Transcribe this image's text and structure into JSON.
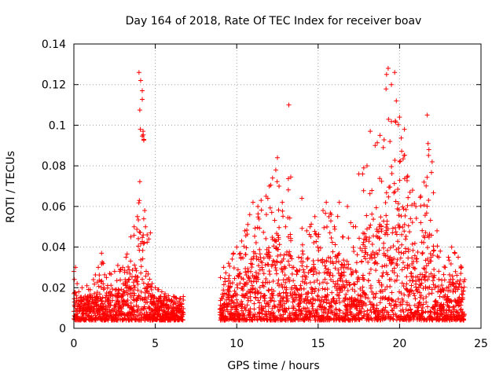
{
  "chart_data": {
    "type": "scatter",
    "title": "Day 164 of 2018, Rate Of TEC Index for receiver boav",
    "xlabel": "GPS time / hours",
    "ylabel": "ROTI / TECUs",
    "xlim": [
      0,
      25
    ],
    "ylim": [
      0,
      0.14
    ],
    "xticks": [
      0,
      5,
      10,
      15,
      20,
      25
    ],
    "xtick_labels": [
      "0",
      "5",
      "10",
      "15",
      "20",
      "25"
    ],
    "yticks": [
      0,
      0.02,
      0.04,
      0.06,
      0.08,
      0.1,
      0.12,
      0.14
    ],
    "ytick_labels": [
      "0",
      "0.02",
      "0.04",
      "0.06",
      "0.08",
      "0.1",
      "0.12",
      "0.14"
    ],
    "grid": true,
    "marker": "+",
    "color": "#ff0000",
    "series": [
      {
        "name": "ROTI",
        "description": "dense cloud of ROTI samples; envelope digitized",
        "x": [
          0.0,
          0.1,
          0.2,
          0.3,
          0.4,
          0.5,
          0.6,
          0.8,
          1.0,
          1.2,
          1.5,
          1.7,
          1.8,
          2.0,
          2.2,
          2.5,
          2.7,
          3.0,
          3.2,
          3.5,
          3.7,
          3.9,
          4.0,
          4.1,
          4.2,
          4.25,
          4.3,
          4.35,
          4.4,
          4.5,
          4.6,
          4.7,
          4.8,
          5.0,
          5.2,
          5.4,
          5.6,
          5.8,
          6.0,
          6.2,
          6.4,
          6.6,
          9.0,
          9.2,
          9.5,
          9.8,
          10.0,
          10.3,
          10.5,
          10.8,
          11.0,
          11.3,
          11.5,
          11.8,
          12.0,
          12.2,
          12.4,
          12.5,
          12.6,
          12.8,
          13.0,
          13.2,
          13.5,
          13.8,
          14.0,
          14.3,
          14.5,
          14.8,
          15.0,
          15.3,
          15.5,
          15.8,
          16.0,
          16.3,
          16.5,
          16.8,
          17.0,
          17.3,
          17.5,
          17.8,
          18.0,
          18.2,
          18.5,
          18.8,
          19.0,
          19.2,
          19.3,
          19.5,
          19.7,
          19.8,
          20.0,
          20.3,
          20.5,
          20.8,
          21.0,
          21.3,
          21.5,
          21.7,
          21.8,
          22.0,
          22.3,
          22.5,
          22.8,
          23.0,
          23.2,
          23.4,
          23.6,
          23.8,
          24.0
        ],
        "y": [
          0.028,
          0.03,
          0.022,
          0.018,
          0.012,
          0.02,
          0.015,
          0.021,
          0.019,
          0.024,
          0.03,
          0.037,
          0.032,
          0.025,
          0.027,
          0.028,
          0.031,
          0.03,
          0.035,
          0.045,
          0.05,
          0.055,
          0.126,
          0.122,
          0.117,
          0.097,
          0.093,
          0.058,
          0.05,
          0.046,
          0.044,
          0.047,
          0.022,
          0.02,
          0.019,
          0.018,
          0.017,
          0.016,
          0.014,
          0.013,
          0.011,
          0.008,
          0.025,
          0.03,
          0.032,
          0.037,
          0.04,
          0.043,
          0.048,
          0.056,
          0.062,
          0.06,
          0.063,
          0.065,
          0.07,
          0.074,
          0.078,
          0.084,
          0.07,
          0.062,
          0.05,
          0.11,
          0.03,
          0.035,
          0.064,
          0.048,
          0.05,
          0.055,
          0.045,
          0.058,
          0.062,
          0.056,
          0.05,
          0.062,
          0.045,
          0.06,
          0.052,
          0.05,
          0.076,
          0.079,
          0.08,
          0.097,
          0.09,
          0.095,
          0.089,
          0.125,
          0.128,
          0.12,
          0.126,
          0.112,
          0.104,
          0.098,
          0.075,
          0.068,
          0.06,
          0.065,
          0.072,
          0.105,
          0.088,
          0.082,
          0.048,
          0.038,
          0.03,
          0.035,
          0.04,
          0.037,
          0.035,
          0.03,
          0.024
        ]
      }
    ]
  }
}
